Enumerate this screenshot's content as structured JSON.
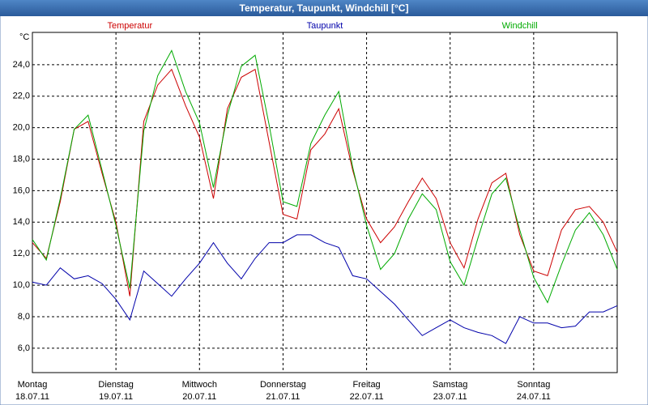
{
  "chart_data": {
    "type": "line",
    "title": "Temperatur, Taupunkt, Windchill [°C]",
    "y_label": "°C",
    "x": [
      0,
      4,
      8,
      12,
      16,
      20,
      24,
      28,
      32,
      36,
      40,
      44,
      48,
      52,
      56,
      60,
      64,
      68,
      72,
      76,
      80,
      84,
      88,
      92,
      96,
      100,
      104,
      108,
      112,
      116,
      120,
      124,
      128,
      132,
      136,
      140,
      144,
      148,
      152,
      156,
      160,
      164,
      168
    ],
    "series": [
      {
        "name": "Temperatur",
        "color": "#cc0000",
        "values": [
          12.7,
          11.7,
          15.3,
          19.9,
          20.4,
          17.1,
          14.0,
          9.3,
          20.4,
          22.7,
          23.7,
          21.4,
          19.4,
          15.5,
          21.2,
          23.2,
          23.7,
          19.1,
          14.5,
          14.2,
          18.6,
          19.6,
          21.2,
          17.3,
          14.2,
          12.7,
          13.7,
          15.3,
          16.8,
          15.5,
          12.7,
          11.1,
          14.2,
          16.5,
          17.1,
          13.2,
          10.9,
          10.6,
          13.5,
          14.8,
          15.0,
          14.0,
          12.1
        ]
      },
      {
        "name": "Taupunkt",
        "color": "#0000aa",
        "values": [
          10.2,
          10.0,
          11.1,
          10.4,
          10.6,
          10.1,
          9.1,
          7.8,
          10.9,
          10.1,
          9.3,
          10.4,
          11.4,
          12.7,
          11.4,
          10.4,
          11.7,
          12.7,
          12.7,
          13.2,
          13.2,
          12.7,
          12.4,
          10.6,
          10.4,
          9.6,
          8.8,
          7.8,
          6.8,
          7.3,
          7.8,
          7.3,
          7.0,
          6.8,
          6.3,
          8.0,
          7.6,
          7.6,
          7.3,
          7.4,
          8.3,
          8.3,
          8.7
        ]
      },
      {
        "name": "Windchill",
        "color": "#00aa00",
        "values": [
          12.9,
          11.6,
          15.5,
          19.9,
          20.8,
          17.3,
          13.8,
          9.8,
          19.8,
          23.3,
          24.9,
          22.3,
          20.3,
          16.2,
          20.8,
          23.9,
          24.6,
          20.2,
          15.3,
          15.0,
          19.0,
          20.8,
          22.3,
          17.5,
          13.8,
          11.0,
          12.0,
          14.2,
          15.8,
          14.8,
          11.5,
          10.0,
          13.0,
          15.8,
          16.8,
          13.5,
          10.5,
          8.9,
          11.3,
          13.5,
          14.6,
          13.2,
          11.0
        ]
      }
    ],
    "xlim": [
      0,
      168
    ],
    "xticks": [
      {
        "value": 0,
        "label": "Montag"
      },
      {
        "value": 24,
        "label": "Dienstag"
      },
      {
        "value": 48,
        "label": "Mittwoch"
      },
      {
        "value": 72,
        "label": "Donnerstag"
      },
      {
        "value": 96,
        "label": "Freitag"
      },
      {
        "value": 120,
        "label": "Samstag"
      },
      {
        "value": 144,
        "label": "Sonntag"
      }
    ],
    "xtick_dates": [
      "18.07.11",
      "19.07.11",
      "20.07.11",
      "21.07.11",
      "22.07.11",
      "23.07.11",
      "24.07.11"
    ],
    "ylim": [
      4.45,
      26.05
    ],
    "yticks": [
      {
        "value": 6,
        "label": "6,0"
      },
      {
        "value": 8,
        "label": "8,0"
      },
      {
        "value": 10,
        "label": "10,0"
      },
      {
        "value": 12,
        "label": "12,0"
      },
      {
        "value": 14,
        "label": "14,0"
      },
      {
        "value": 16,
        "label": "16,0"
      },
      {
        "value": 18,
        "label": "18,0"
      },
      {
        "value": 20,
        "label": "20,0"
      },
      {
        "value": 22,
        "label": "22,0"
      },
      {
        "value": 24,
        "label": "24,0"
      }
    ],
    "grid": true
  }
}
